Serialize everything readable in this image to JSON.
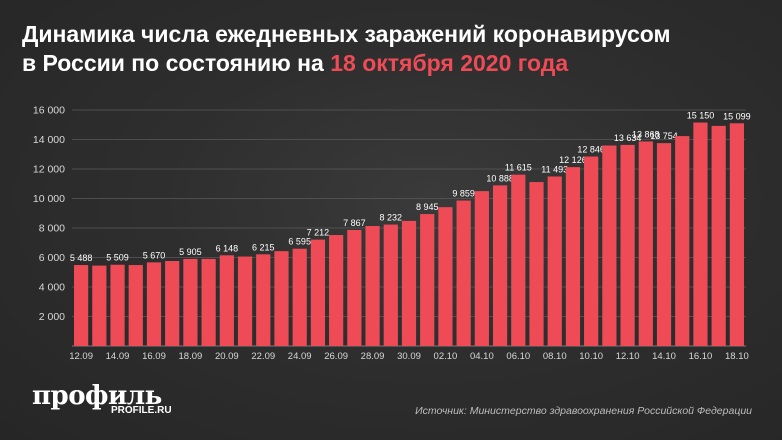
{
  "title": {
    "line1": "Динамика числа ежедневных заражений коронавирусом",
    "line2_prefix": "в России по состоянию на",
    "line2_accent": "18 октября 2020 года"
  },
  "logo": {
    "name": "профиль",
    "site": "PROFILE.RU"
  },
  "source": "Источник: Министерство здравоохранения Российской Федерации",
  "colors": {
    "bar": "#ef4b57",
    "accent": "#ef4b57",
    "text": "#ffffff",
    "grid": "#5a5a5a"
  },
  "chart_data": {
    "type": "bar",
    "ylim": [
      0,
      16000
    ],
    "yticks": [
      2000,
      4000,
      6000,
      8000,
      10000,
      12000,
      14000,
      16000
    ],
    "ytick_labels": [
      "2 000",
      "4 000",
      "6 000",
      "8 000",
      "10 000",
      "12 000",
      "14 000",
      "16 000"
    ],
    "xtick_labels": [
      "12.09",
      "14.09",
      "16.09",
      "18.09",
      "20.09",
      "22.09",
      "24.09",
      "26.09",
      "28.09",
      "30.09",
      "02.10",
      "04.10",
      "06.10",
      "08.10",
      "10.10",
      "12.10",
      "14.10",
      "16.10",
      "18.10"
    ],
    "categories": [
      "12.09",
      "13.09",
      "14.09",
      "15.09",
      "16.09",
      "17.09",
      "18.09",
      "19.09",
      "20.09",
      "21.09",
      "22.09",
      "23.09",
      "24.09",
      "25.09",
      "26.09",
      "27.09",
      "28.09",
      "29.09",
      "30.09",
      "01.10",
      "02.10",
      "03.10",
      "04.10",
      "05.10",
      "06.10",
      "07.10",
      "08.10",
      "09.10",
      "10.10",
      "11.10",
      "12.10",
      "13.10",
      "14.10",
      "15.10",
      "16.10",
      "17.10",
      "18.10"
    ],
    "values": [
      5488,
      5449,
      5509,
      5488,
      5670,
      5762,
      5905,
      5905,
      6148,
      6065,
      6215,
      6431,
      6595,
      7212,
      7523,
      7867,
      8135,
      8232,
      8481,
      8945,
      9412,
      9859,
      10499,
      10888,
      11615,
      11115,
      11493,
      12126,
      12846,
      13592,
      13634,
      13868,
      13754,
      14231,
      15150,
      14922,
      15099
    ],
    "data_labels": [
      "5 488",
      "",
      "5 509",
      "",
      "5 670",
      "",
      "5 905",
      "",
      "6 148",
      "",
      "6 215",
      "",
      "6 595",
      "7 212",
      "",
      "7 867",
      "",
      "8 232",
      "",
      "8 945",
      "",
      "9 859",
      "",
      "10 888",
      "11 615",
      "",
      "11 493",
      "12 126",
      "12 846",
      "",
      "13 634",
      "13 868",
      "13 754",
      "",
      "15 150",
      "",
      "15 099"
    ]
  }
}
